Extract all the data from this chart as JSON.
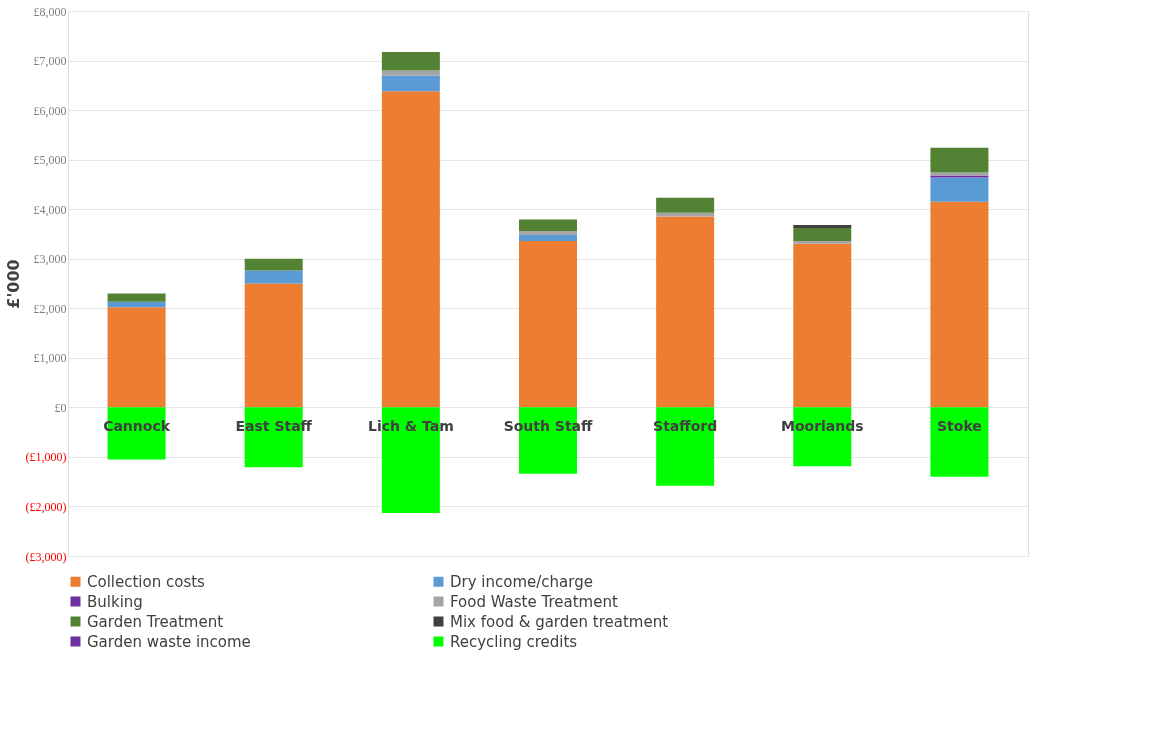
{
  "chart_data": {
    "type": "bar",
    "stacked": true,
    "ylabel": "£'000",
    "categories": [
      "Cannock",
      "East Staff",
      "Lich & Tam",
      "South Staff",
      "Stafford",
      "Moorlands",
      "Stoke"
    ],
    "series": [
      {
        "name": "Collection costs",
        "color": "#ed7d31",
        "values": [
          2020,
          2500,
          6380,
          3360,
          3850,
          3300,
          4150
        ]
      },
      {
        "name": "Dry income/charge",
        "color": "#5b9bd5",
        "values": [
          110,
          260,
          320,
          120,
          0,
          0,
          490
        ]
      },
      {
        "name": "Bulking",
        "color": "#7030a0",
        "values": [
          0,
          0,
          0,
          0,
          0,
          0,
          40
        ]
      },
      {
        "name": "Food Waste Treatment",
        "color": "#a5a5a5",
        "values": [
          null,
          null,
          100,
          80,
          80,
          60,
          60
        ]
      },
      {
        "name": "Garden Treatment",
        "color": "#548235",
        "values": [
          170,
          240,
          370,
          230,
          300,
          260,
          500
        ]
      },
      {
        "name": "Mix food & garden treatment",
        "color": "#404040",
        "values": [
          0,
          0,
          0,
          0,
          0,
          60,
          0
        ]
      },
      {
        "name": "Garden waste income",
        "color": "#7030a0",
        "values": [
          0,
          0,
          0,
          0,
          0,
          0,
          0
        ]
      },
      {
        "name": "Recycling credits",
        "color": "#00ff00",
        "values": [
          -1050,
          -1210,
          -2130,
          -1340,
          -1580,
          -1190,
          -1400
        ]
      }
    ],
    "ylim": [
      -3000,
      8000
    ],
    "yticks": [
      {
        "value": -3000,
        "label": "(£3,000)"
      },
      {
        "value": -2000,
        "label": "(£2,000)"
      },
      {
        "value": -1000,
        "label": "(£1,000)"
      },
      {
        "value": 0,
        "label": "£0"
      },
      {
        "value": 1000,
        "label": "£1,000"
      },
      {
        "value": 2000,
        "label": "£2,000"
      },
      {
        "value": 3000,
        "label": "£3,000"
      },
      {
        "value": 4000,
        "label": "£4,000"
      },
      {
        "value": 5000,
        "label": "£5,000"
      },
      {
        "value": 6000,
        "label": "£6,000"
      },
      {
        "value": 7000,
        "label": "£7,000"
      },
      {
        "value": 8000,
        "label": "£8,000"
      }
    ],
    "grid": "y",
    "legend": "bottom"
  }
}
